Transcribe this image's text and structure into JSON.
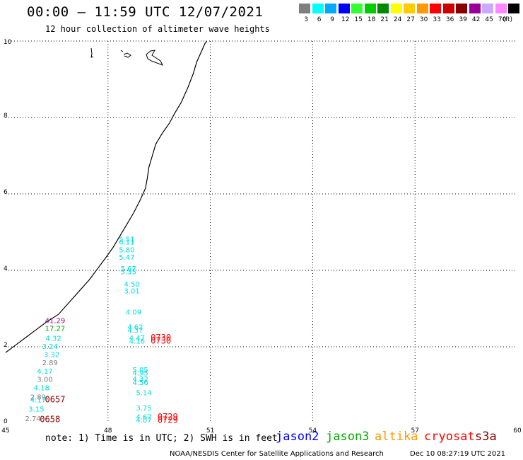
{
  "title": "00:00 – 11:59 UTC 12/07/2021",
  "subtitle": "12 hour collection of altimeter wave heights",
  "legend": {
    "unit": "(ft)",
    "items": [
      {
        "label": "3",
        "color": "#7f7f7f"
      },
      {
        "label": "6",
        "color": "#00ffff"
      },
      {
        "label": "9",
        "color": "#00aaff"
      },
      {
        "label": "12",
        "color": "#0000ff"
      },
      {
        "label": "15",
        "color": "#33ff33"
      },
      {
        "label": "18",
        "color": "#00cc00"
      },
      {
        "label": "21",
        "color": "#008800"
      },
      {
        "label": "24",
        "color": "#ffff00"
      },
      {
        "label": "27",
        "color": "#ffcc00"
      },
      {
        "label": "30",
        "color": "#ff9900"
      },
      {
        "label": "33",
        "color": "#ff0000"
      },
      {
        "label": "36",
        "color": "#cc0000"
      },
      {
        "label": "39",
        "color": "#880000"
      },
      {
        "label": "42",
        "color": "#990099"
      },
      {
        "label": "45",
        "color": "#ccaaff"
      },
      {
        "label": "70",
        "color": "#ff88ff"
      },
      {
        "label": "",
        "color": "#000000"
      }
    ]
  },
  "map": {
    "lon_ticks": [
      "45",
      "48",
      "51",
      "54",
      "57",
      "60"
    ],
    "lat_ticks": [
      "0",
      "2",
      "4",
      "6",
      "8",
      "10"
    ],
    "lon_range": [
      45,
      60
    ],
    "lat_range": [
      0,
      10
    ],
    "grid": "dotted",
    "coastline_color": "#000000"
  },
  "wave_heights": [
    {
      "text": "41.29",
      "lon": 46.45,
      "lat": 2.62,
      "color": "#990099"
    },
    {
      "text": "17.27",
      "lon": 46.45,
      "lat": 2.42,
      "color": "#00aa00"
    },
    {
      "text": "4.32",
      "lon": 46.4,
      "lat": 2.16,
      "color": "#00dddd"
    },
    {
      "text": "3.24",
      "lon": 46.3,
      "lat": 1.94,
      "color": "#00dddd"
    },
    {
      "text": "3.32",
      "lon": 46.35,
      "lat": 1.73,
      "color": "#00dddd"
    },
    {
      "text": "2.89",
      "lon": 46.3,
      "lat": 1.52,
      "color": "#7f7f7f"
    },
    {
      "text": "4.17",
      "lon": 46.15,
      "lat": 1.3,
      "color": "#00dddd"
    },
    {
      "text": "3.00",
      "lon": 46.15,
      "lat": 1.08,
      "color": "#7f7f7f"
    },
    {
      "text": "4.18",
      "lon": 46.05,
      "lat": 0.86,
      "color": "#00dddd"
    },
    {
      "text": "2.89",
      "lon": 45.95,
      "lat": 0.62,
      "color": "#7f7f7f"
    },
    {
      "text": "4.17",
      "lon": 45.95,
      "lat": 0.55,
      "color": "#00dddd"
    },
    {
      "text": "3.15",
      "lon": 45.9,
      "lat": 0.31,
      "color": "#00dddd"
    },
    {
      "text": "2.74",
      "lon": 45.8,
      "lat": 0.06,
      "color": "#7f7f7f"
    },
    {
      "text": "5.51",
      "lon": 48.55,
      "lat": 4.75,
      "color": "#00dddd"
    },
    {
      "text": "6.11",
      "lon": 48.55,
      "lat": 4.68,
      "color": "#00dddd"
    },
    {
      "text": "5.80",
      "lon": 48.55,
      "lat": 4.47,
      "color": "#00dddd"
    },
    {
      "text": "5.47",
      "lon": 48.55,
      "lat": 4.28,
      "color": "#00dddd"
    },
    {
      "text": "5.67",
      "lon": 48.6,
      "lat": 3.98,
      "color": "#00dddd"
    },
    {
      "text": "5.35",
      "lon": 48.6,
      "lat": 3.9,
      "color": "#00dddd"
    },
    {
      "text": "4.50",
      "lon": 48.7,
      "lat": 3.57,
      "color": "#00dddd"
    },
    {
      "text": "3.01",
      "lon": 48.7,
      "lat": 3.4,
      "color": "#00dddd"
    },
    {
      "text": "4.09",
      "lon": 48.75,
      "lat": 2.84,
      "color": "#00dddd"
    },
    {
      "text": "4.62",
      "lon": 48.8,
      "lat": 2.45,
      "color": "#00dddd"
    },
    {
      "text": "4.37",
      "lon": 48.8,
      "lat": 2.37,
      "color": "#00dddd"
    },
    {
      "text": "4.47",
      "lon": 48.85,
      "lat": 2.17,
      "color": "#00dddd"
    },
    {
      "text": "4.16",
      "lon": 48.85,
      "lat": 2.08,
      "color": "#00dddd"
    },
    {
      "text": "5.05",
      "lon": 48.95,
      "lat": 1.33,
      "color": "#00dddd"
    },
    {
      "text": "4.95",
      "lon": 48.95,
      "lat": 1.25,
      "color": "#00dddd"
    },
    {
      "text": "4.32",
      "lon": 48.95,
      "lat": 1.09,
      "color": "#00dddd"
    },
    {
      "text": "4.56",
      "lon": 48.95,
      "lat": 1.0,
      "color": "#00dddd"
    },
    {
      "text": "5.14",
      "lon": 49.05,
      "lat": 0.73,
      "color": "#00dddd"
    },
    {
      "text": "3.75",
      "lon": 49.05,
      "lat": 0.33,
      "color": "#00dddd"
    },
    {
      "text": "4.67",
      "lon": 49.05,
      "lat": 0.1,
      "color": "#00dddd"
    },
    {
      "text": "4.07",
      "lon": 49.05,
      "lat": 0.02,
      "color": "#00dddd"
    }
  ],
  "pass_times": [
    {
      "text": "0730",
      "lon": 49.55,
      "lat": 2.17,
      "color": "#ff0000"
    },
    {
      "text": "0730",
      "lon": 49.55,
      "lat": 2.08,
      "color": "#ff0000"
    },
    {
      "text": "0657",
      "lon": 46.45,
      "lat": 0.55,
      "color": "#880000"
    },
    {
      "text": "0658",
      "lon": 46.3,
      "lat": 0.03,
      "color": "#880000"
    },
    {
      "text": "0729",
      "lon": 49.75,
      "lat": 0.09,
      "color": "#ff0000"
    },
    {
      "text": "0729",
      "lon": 49.75,
      "lat": 0.01,
      "color": "#ff0000"
    }
  ],
  "note": "note: 1) Time is in UTC; 2) SWH is in feet",
  "satellites": [
    {
      "name": "jason2",
      "color": "#0000ff"
    },
    {
      "name": "jason3",
      "color": "#00aa00"
    },
    {
      "name": "altika",
      "color": "#ff9900"
    },
    {
      "name": "cryosat",
      "color": "#ff0000"
    },
    {
      "name": "s3a",
      "color": "#880000"
    }
  ],
  "footer": {
    "credit": "NOAA/NESDIS Center for Satellite Applications and Research",
    "timestamp": "Dec 10 08:27:19 UTC 2021"
  }
}
